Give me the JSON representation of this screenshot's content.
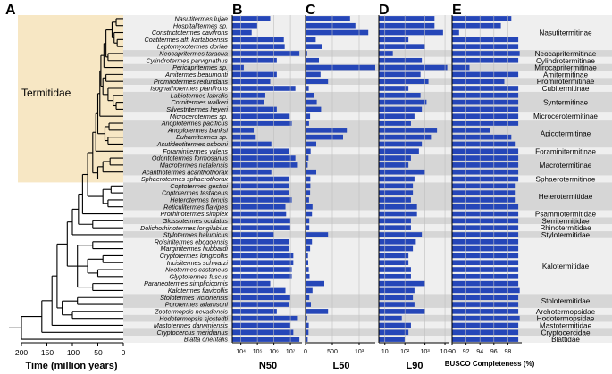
{
  "panels": {
    "a": "A",
    "b": "B",
    "c": "C",
    "d": "D",
    "e": "E"
  },
  "clade_label": "Termitidae",
  "tree_axis": {
    "title": "Time (million years)",
    "ticks": [
      "200",
      "150",
      "100",
      "50",
      "0"
    ]
  },
  "colors": {
    "bar": "#2546b8",
    "termitidae_shade": "#f7e7c4",
    "row_grey": "#d6d6d6",
    "row_light": "#efefef",
    "branch": "#000000"
  },
  "chart_data": [
    {
      "type": "bar",
      "title": "",
      "xlabel": "N50",
      "xscale": "log",
      "xlim": [
        3000,
        50000000
      ],
      "tick_labels": [
        "10⁴",
        "10⁵",
        "10⁶",
        "10⁷"
      ],
      "categories": [
        "Nasutitermes lujae",
        "Hospitalitermes sp.",
        "Constrictotermes cavifrons",
        "Coatitermes aff. kartaboensis",
        "Leptomyxotermes doriae",
        "Neocapritermes taracua",
        "Cylindrotermes parvignathus",
        "Pericapritermes sp.",
        "Amitermes beaumonti",
        "Promirotermes redundans",
        "Isognathotermes planifrons",
        "Labiotermes labralis",
        "Cornitermes walkeri",
        "Silvestritermes heyeri",
        "Microcerotermes sp.",
        "Anoplotermes pacificus",
        "Anoplotermes banksi",
        "Euhamitermes sp.",
        "Acutidentitermes osborni",
        "Foraminitermes valens",
        "Odontotermes formosanus",
        "Macrotermes natalensis",
        "Acanthotermes acanthothorax",
        "Sphaerotermes sphaerothorax",
        "Coptotermes gestroi",
        "Coptotermes testaceus",
        "Heterotermes tenuis",
        "Reticulitermes flavipes",
        "Prorhinotermes simplex",
        "Glossotermes oculatus",
        "Dolichorhinotermes longilabius",
        "Stylotermes halumicus",
        "Roisinitermes ebogoensis",
        "Marginitermes hubbardi",
        "Cryptotermes longicollis",
        "Incisitermes schwarzi",
        "Neotermes castaneus",
        "Glyptotermes fuscus",
        "Paraneotermes simplicicornis",
        "Kalotermes flavicollis",
        "Stolotermes victoriensis",
        "Porotermes adamsoni",
        "Zootermopsis nevadensis",
        "Hodotermopsis sjostedti",
        "Mastotermes darwiniensis",
        "Cryptocercus meridianus",
        "Blatta orientalis"
      ],
      "values": [
        600000,
        100000,
        45000,
        4000000,
        4500000,
        35000000,
        1500000,
        15000,
        1500000,
        600000,
        20000000,
        300000,
        250000,
        1500000,
        9000000,
        12000000,
        60000,
        70000,
        700000,
        8000000,
        20000000,
        25000000,
        700000,
        8000000,
        8000000,
        8000000,
        12000000,
        5000000,
        5500000,
        10000000,
        10000000,
        1000000,
        8000000,
        8000000,
        15000000,
        15000000,
        12000000,
        12000000,
        600000,
        5000000,
        10000000,
        8000000,
        1500000,
        25000000,
        10000000,
        15000000,
        35000000
      ]
    },
    {
      "type": "bar",
      "title": "",
      "xlabel": "L50",
      "xscale": "linear",
      "xlim": [
        0,
        1300
      ],
      "tick_labels": [
        "0",
        "500",
        "10³"
      ],
      "categories": "same as N50",
      "values": [
        830,
        930,
        1170,
        190,
        300,
        30,
        250,
        1300,
        280,
        420,
        60,
        160,
        210,
        290,
        85,
        65,
        770,
        700,
        200,
        95,
        55,
        40,
        200,
        90,
        90,
        85,
        65,
        130,
        120,
        70,
        70,
        420,
        120,
        85,
        45,
        50,
        60,
        75,
        350,
        130,
        70,
        100,
        420,
        30,
        60,
        55,
        40
      ]
    },
    {
      "type": "bar",
      "title": "",
      "xlabel": "L90",
      "xscale": "log",
      "xlim": [
        5,
        15000
      ],
      "tick_labels": [
        "10",
        "10²",
        "10³",
        "10⁴"
      ],
      "categories": "same as N50",
      "values": [
        3000,
        3000,
        8000,
        150,
        1000,
        25,
        700,
        13000,
        600,
        1500,
        150,
        600,
        1200,
        700,
        300,
        200,
        4000,
        2000,
        700,
        500,
        200,
        150,
        1000,
        300,
        250,
        250,
        200,
        400,
        400,
        200,
        200,
        700,
        350,
        250,
        150,
        150,
        200,
        200,
        1000,
        300,
        250,
        300,
        1000,
        70,
        200,
        150,
        100
      ]
    },
    {
      "type": "bar",
      "title": "",
      "xlabel": "BUSCO Completeness (%)",
      "xscale": "linear",
      "xlim": [
        90,
        100
      ],
      "tick_labels": [
        "90",
        "92",
        "94",
        "96",
        "98"
      ],
      "categories": "same as N50",
      "values": [
        98.5,
        97,
        91,
        99.5,
        99.5,
        99.7,
        99.5,
        92.5,
        99.5,
        97.5,
        99.5,
        99.5,
        99.5,
        99.5,
        99.5,
        99.5,
        95.5,
        98.5,
        99,
        99.5,
        99.5,
        99.5,
        99.5,
        99.5,
        99,
        99,
        99,
        99.5,
        99.5,
        99.5,
        99.5,
        99.5,
        99.5,
        99.5,
        99.5,
        99.5,
        99.5,
        99.5,
        99.5,
        99.7,
        99.5,
        99.5,
        99.5,
        99.7,
        99.5,
        99.5,
        99.5
      ]
    }
  ],
  "subfamilies": [
    {
      "name": "Nasutitermitinae",
      "start": 0,
      "end": 4,
      "shade": "light"
    },
    {
      "name": "Neocapritermitinae",
      "start": 5,
      "end": 5,
      "shade": "grey"
    },
    {
      "name": "Cylindrotermitinae",
      "start": 6,
      "end": 6,
      "shade": "light"
    },
    {
      "name": "Mirocapritermitinae",
      "start": 7,
      "end": 7,
      "shade": "grey"
    },
    {
      "name": "Amitermitinae",
      "start": 8,
      "end": 8,
      "shade": "light"
    },
    {
      "name": "Promirotermitinae",
      "start": 9,
      "end": 9,
      "shade": "grey"
    },
    {
      "name": "Cubitermitinae",
      "start": 10,
      "end": 10,
      "shade": "light"
    },
    {
      "name": "Syntermitinae",
      "start": 11,
      "end": 13,
      "shade": "grey"
    },
    {
      "name": "Microcerotermitinae",
      "start": 14,
      "end": 14,
      "shade": "light"
    },
    {
      "name": "Apicotermitinae",
      "start": 15,
      "end": 18,
      "shade": "grey"
    },
    {
      "name": "Foraminitermitinae",
      "start": 19,
      "end": 19,
      "shade": "light"
    },
    {
      "name": "Macrotermitinae",
      "start": 20,
      "end": 22,
      "shade": "grey"
    },
    {
      "name": "Sphaerotermitinae",
      "start": 23,
      "end": 23,
      "shade": "light"
    },
    {
      "name": "Heterotermitidae",
      "start": 24,
      "end": 27,
      "shade": "grey"
    },
    {
      "name": "Psammotermitidae",
      "start": 28,
      "end": 28,
      "shade": "light"
    },
    {
      "name": "Serritermitidae",
      "start": 29,
      "end": 29,
      "shade": "grey"
    },
    {
      "name": "Rhinotermitidae",
      "start": 30,
      "end": 30,
      "shade": "light"
    },
    {
      "name": "Stylotermitidae",
      "start": 31,
      "end": 31,
      "shade": "grey"
    },
    {
      "name": "Kalotermitidae",
      "start": 32,
      "end": 39,
      "shade": "light"
    },
    {
      "name": "Stolotermitidae",
      "start": 40,
      "end": 41,
      "shade": "grey"
    },
    {
      "name": "Archotermopsidae",
      "start": 42,
      "end": 42,
      "shade": "light"
    },
    {
      "name": "Hodotermopsidae",
      "start": 43,
      "end": 43,
      "shade": "grey"
    },
    {
      "name": "Mastotermitidae",
      "start": 44,
      "end": 44,
      "shade": "light"
    },
    {
      "name": "Cryptocercidae",
      "start": 45,
      "end": 45,
      "shade": "grey"
    },
    {
      "name": "Blattidae",
      "start": 46,
      "end": 46,
      "shade": "light"
    }
  ]
}
